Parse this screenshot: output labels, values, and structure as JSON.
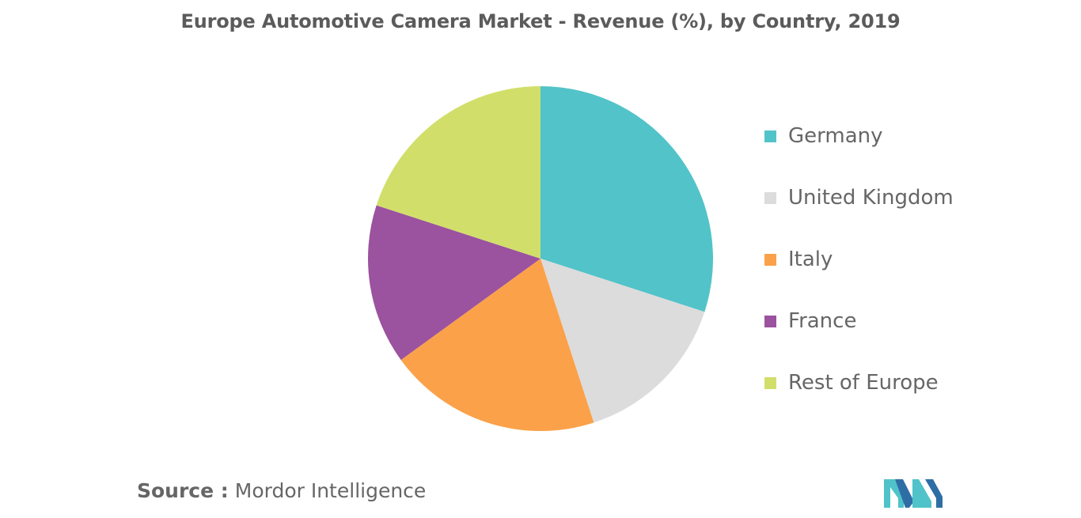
{
  "title": "Europe Automotive Camera Market - Revenue (%), by Country, 2019",
  "source": {
    "label": "Source :",
    "value": "Mordor Intelligence"
  },
  "logo": {
    "icon": "mordor-intelligence-logo",
    "colors": [
      "#4fc3c9",
      "#2f6ea5"
    ]
  },
  "chart_data": {
    "type": "pie",
    "start_angle_deg": 0,
    "direction": "clockwise",
    "slices": [
      {
        "label": "Germany",
        "value": 30,
        "color": "#52c3c9"
      },
      {
        "label": "United Kingdom",
        "value": 15,
        "color": "#dcdcdc"
      },
      {
        "label": "Italy",
        "value": 20,
        "color": "#fba149"
      },
      {
        "label": "France",
        "value": 15,
        "color": "#9b529f"
      },
      {
        "label": "Rest of Europe",
        "value": 20,
        "color": "#d1df6a"
      }
    ],
    "legend_position": "right",
    "data_labels": false
  }
}
